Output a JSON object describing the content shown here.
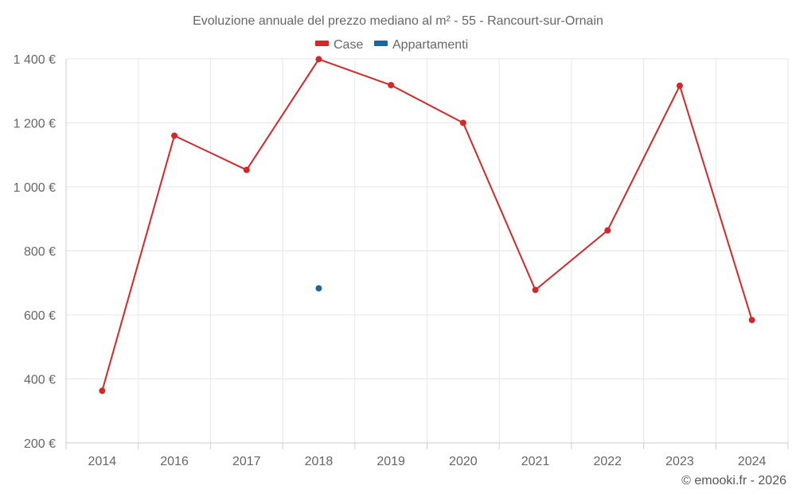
{
  "chart_data": {
    "type": "line",
    "title": "Evoluzione annuale del prezzo mediano al m² - 55 - Rancourt-sur-Ornain",
    "categories": [
      "2014",
      "2016",
      "2017",
      "2018",
      "2019",
      "2020",
      "2021",
      "2022",
      "2023",
      "2024"
    ],
    "y_tick_labels": [
      "1 400 €",
      "1 200 €",
      "1 000 €",
      "800 €",
      "600 €",
      "400 €",
      "200 €"
    ],
    "y_ticks": [
      1400,
      1200,
      1000,
      800,
      600,
      400,
      200
    ],
    "ylim": [
      200,
      1400
    ],
    "grid": true,
    "legend_position": "top-center",
    "series": [
      {
        "name": "Case",
        "color": "#d62728",
        "values": [
          363,
          1160,
          1053,
          1399,
          1318,
          1200,
          678,
          864,
          1316,
          584
        ]
      },
      {
        "name": "Appartamenti",
        "color": "#1a66a3",
        "values": [
          null,
          null,
          null,
          683,
          null,
          null,
          null,
          null,
          null,
          null
        ]
      }
    ],
    "credit": "© emooki.fr - 2026"
  }
}
